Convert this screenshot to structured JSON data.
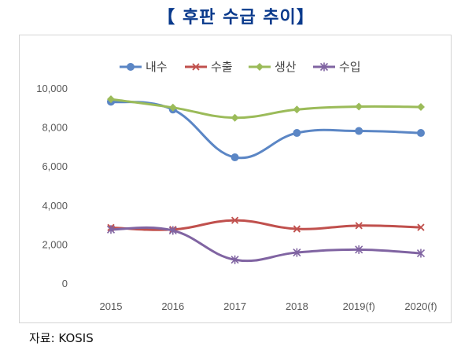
{
  "title": "【 후판 수급 추이】",
  "source": "자료: KOSIS",
  "chart_data": {
    "type": "line",
    "title": "",
    "xlabel": "",
    "ylabel": "",
    "categories": [
      "2015",
      "2016",
      "2017",
      "2018",
      "2019(f)",
      "2020(f)"
    ],
    "ylim": [
      0,
      10000
    ],
    "yticks": [
      "0",
      "2,000",
      "4,000",
      "6,000",
      "8,000",
      "10,000"
    ],
    "grid": false,
    "legend": "top",
    "series": [
      {
        "name": "내수",
        "color": "#5b86c5",
        "marker": "circle",
        "values": [
          9300,
          8900,
          6450,
          7700,
          7800,
          7700
        ]
      },
      {
        "name": "수출",
        "color": "#c0504d",
        "marker": "x",
        "values": [
          2850,
          2750,
          3220,
          2780,
          2950,
          2860
        ]
      },
      {
        "name": "생산",
        "color": "#9bbb59",
        "marker": "diamond",
        "values": [
          9430,
          9000,
          8480,
          8900,
          9050,
          9030
        ]
      },
      {
        "name": "수입",
        "color": "#8064a2",
        "marker": "star",
        "values": [
          2750,
          2700,
          1200,
          1570,
          1720,
          1530
        ]
      }
    ]
  }
}
